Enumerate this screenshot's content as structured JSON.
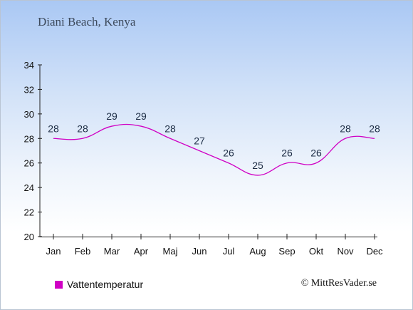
{
  "header": {
    "location": "Diani Beach, Kenya"
  },
  "footer": {
    "copyright": "© MittResVader.se"
  },
  "colors": {
    "series_line": "#d000c4",
    "axis": "#222222"
  },
  "chart_data": {
    "type": "line",
    "title": "Diani Beach, Kenya",
    "xlabel": "",
    "ylabel": "",
    "categories": [
      "Jan",
      "Feb",
      "Mar",
      "Apr",
      "Maj",
      "Jun",
      "Jul",
      "Aug",
      "Sep",
      "Okt",
      "Nov",
      "Dec"
    ],
    "series": [
      {
        "name": "Vattentemperatur",
        "values": [
          28,
          28,
          29,
          29,
          28,
          27,
          26,
          25,
          26,
          26,
          28,
          28
        ]
      }
    ],
    "ylim": [
      20,
      34
    ],
    "yticks": [
      20,
      22,
      24,
      26,
      28,
      30,
      32,
      34
    ],
    "grid": false,
    "legend": "bottom-left"
  }
}
